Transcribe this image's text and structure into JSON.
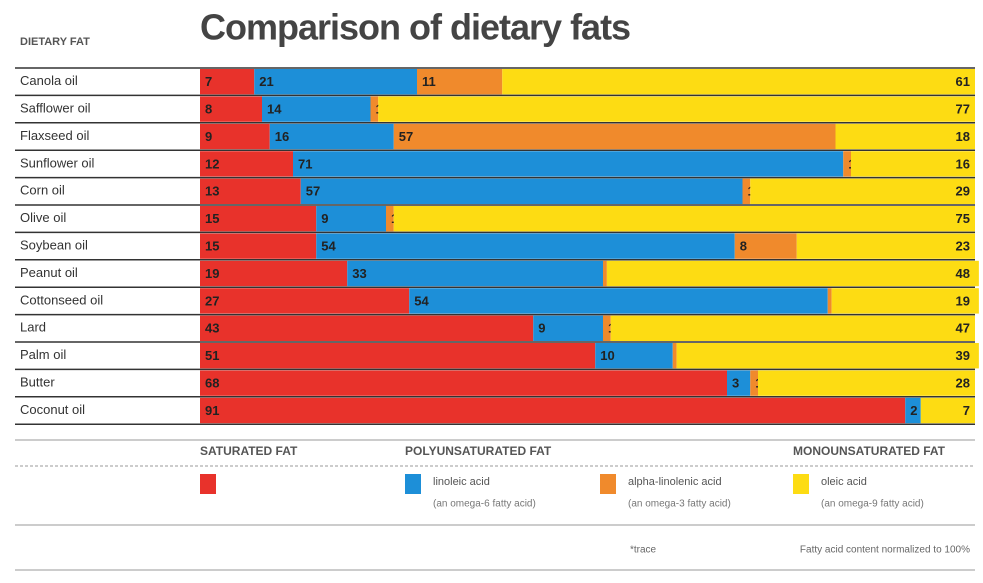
{
  "chart_data": {
    "type": "bar",
    "orientation": "horizontal",
    "stacked": true,
    "title": "Comparison of dietary fats",
    "category_header": "DIETARY FAT",
    "categories": [
      "Canola oil",
      "Safflower oil",
      "Flaxseed oil",
      "Sunflower oil",
      "Corn oil",
      "Olive oil",
      "Soybean oil",
      "Peanut oil",
      "Cottonseed oil",
      "Lard",
      "Palm oil",
      "Butter",
      "Coconut oil"
    ],
    "xlim": [
      0,
      100
    ],
    "series": [
      {
        "name": "SATURATED FAT",
        "color": "#e8322b",
        "values": [
          7,
          8,
          9,
          12,
          13,
          15,
          15,
          19,
          27,
          43,
          51,
          68,
          91
        ]
      },
      {
        "name": "linoleic acid",
        "note": "(an omega-6 fatty acid)",
        "group": "POLYUNSATURATED FAT",
        "color": "#1d8fd8",
        "values": [
          21,
          14,
          16,
          71,
          57,
          9,
          54,
          33,
          54,
          9,
          10,
          3,
          2
        ]
      },
      {
        "name": "alpha-linolenic acid",
        "note": "(an omega-3 fatty acid)",
        "color": "#f08a2c",
        "values": [
          11,
          1,
          57,
          1,
          1,
          1,
          8,
          0.5,
          0.5,
          1,
          0.5,
          1,
          null
        ],
        "value_labels": [
          "11",
          "1",
          "57",
          "1",
          "1",
          "1",
          "8",
          "*",
          "*",
          "1",
          "*",
          "1",
          null
        ]
      },
      {
        "name": "oleic acid",
        "note": "(an omega-9 fatty acid)",
        "group": "MONOUNSATURATED FAT",
        "color": "#fddc13",
        "values": [
          61,
          77,
          18,
          16,
          29,
          75,
          23,
          48,
          19,
          47,
          39,
          28,
          7
        ]
      }
    ],
    "footnotes": [
      "*trace",
      "Fatty acid content normalized to 100%"
    ]
  }
}
